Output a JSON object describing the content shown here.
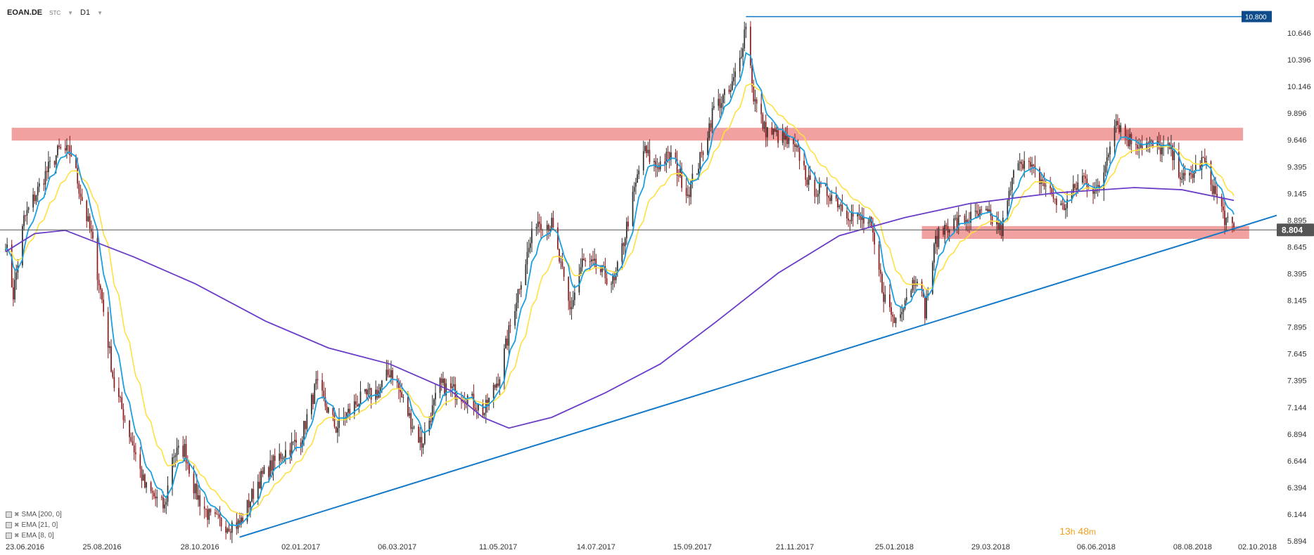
{
  "header": {
    "symbol": "EOAN.DE",
    "type": "STC",
    "interval": "D1"
  },
  "indicators": [
    {
      "label": "SMA [200,  0]"
    },
    {
      "label": "EMA [21,  0]"
    },
    {
      "label": "EMA [8,  0]"
    }
  ],
  "timer": {
    "h": "13",
    "h_unit": "h",
    "m": "48",
    "m_unit": "m"
  },
  "colors": {
    "up": "#2d2d2d",
    "down": "#8b1a1a",
    "sma200": "#6a3dc8",
    "ema21": "#ffe040",
    "ema8": "#1aa0e0",
    "trendline": "#1479c8",
    "zone": "#f09090",
    "price_line": "#555555",
    "top_label": "#0d4b8a"
  },
  "chart_data": {
    "type": "candlestick",
    "x_ticks": [
      "23.06.2016",
      "25.08.2016",
      "28.10.2016",
      "02.01.2017",
      "06.03.2017",
      "11.05.2017",
      "14.07.2017",
      "15.09.2017",
      "21.11.2017",
      "25.01.2018",
      "29.03.2018",
      "06.06.2018",
      "08.08.2018",
      "02.10.2018"
    ],
    "y_ticks": [
      "10.646",
      "10.396",
      "10.146",
      "9.896",
      "9.646",
      "9.395",
      "9.145",
      "8.895",
      "8.645",
      "8.395",
      "8.145",
      "7.895",
      "7.645",
      "7.395",
      "7.144",
      "6.894",
      "6.644",
      "6.394",
      "6.144",
      "5.894"
    ],
    "ylim": [
      5.894,
      10.85
    ],
    "current_price": "8.804",
    "top_level": "10.800",
    "resistance_zone": {
      "low": 9.64,
      "high": 9.76
    },
    "support_zone": {
      "low": 8.72,
      "high": 8.84
    },
    "trendline": [
      {
        "date": "2016-11-23",
        "value": 5.93
      },
      {
        "date": "2018-10-02",
        "value": 8.94
      }
    ],
    "close_anchors": [
      {
        "date": "2016-06-23",
        "value": 8.7
      },
      {
        "date": "2016-06-28",
        "value": 8.2
      },
      {
        "date": "2016-07-05",
        "value": 8.9
      },
      {
        "date": "2016-07-18",
        "value": 9.3
      },
      {
        "date": "2016-07-28",
        "value": 9.55
      },
      {
        "date": "2016-08-05",
        "value": 9.52
      },
      {
        "date": "2016-08-10",
        "value": 9.2
      },
      {
        "date": "2016-08-18",
        "value": 8.75
      },
      {
        "date": "2016-08-25",
        "value": 8.15
      },
      {
        "date": "2016-09-02",
        "value": 7.35
      },
      {
        "date": "2016-09-12",
        "value": 6.9
      },
      {
        "date": "2016-09-22",
        "value": 6.4
      },
      {
        "date": "2016-10-05",
        "value": 6.2
      },
      {
        "date": "2016-10-10",
        "value": 6.7
      },
      {
        "date": "2016-10-18",
        "value": 6.75
      },
      {
        "date": "2016-10-25",
        "value": 6.35
      },
      {
        "date": "2016-11-04",
        "value": 6.1
      },
      {
        "date": "2016-11-14",
        "value": 6.05
      },
      {
        "date": "2016-11-23",
        "value": 6.05
      },
      {
        "date": "2016-12-05",
        "value": 6.45
      },
      {
        "date": "2016-12-20",
        "value": 6.7
      },
      {
        "date": "2017-01-02",
        "value": 6.85
      },
      {
        "date": "2017-01-12",
        "value": 7.35
      },
      {
        "date": "2017-01-25",
        "value": 6.95
      },
      {
        "date": "2017-02-08",
        "value": 7.2
      },
      {
        "date": "2017-02-22",
        "value": 7.3
      },
      {
        "date": "2017-03-02",
        "value": 7.5
      },
      {
        "date": "2017-03-14",
        "value": 7.05
      },
      {
        "date": "2017-03-22",
        "value": 6.8
      },
      {
        "date": "2017-04-03",
        "value": 7.35
      },
      {
        "date": "2017-04-20",
        "value": 7.25
      },
      {
        "date": "2017-05-02",
        "value": 7.1
      },
      {
        "date": "2017-05-12",
        "value": 7.45
      },
      {
        "date": "2017-05-25",
        "value": 8.3
      },
      {
        "date": "2017-06-05",
        "value": 8.9
      },
      {
        "date": "2017-06-15",
        "value": 8.85
      },
      {
        "date": "2017-06-27",
        "value": 8.05
      },
      {
        "date": "2017-07-05",
        "value": 8.5
      },
      {
        "date": "2017-07-14",
        "value": 8.45
      },
      {
        "date": "2017-07-26",
        "value": 8.3
      },
      {
        "date": "2017-08-04",
        "value": 8.9
      },
      {
        "date": "2017-08-14",
        "value": 9.55
      },
      {
        "date": "2017-08-22",
        "value": 9.4
      },
      {
        "date": "2017-09-01",
        "value": 9.5
      },
      {
        "date": "2017-09-12",
        "value": 9.15
      },
      {
        "date": "2017-09-21",
        "value": 9.5
      },
      {
        "date": "2017-09-29",
        "value": 9.95
      },
      {
        "date": "2017-10-10",
        "value": 10.1
      },
      {
        "date": "2017-10-16",
        "value": 10.4
      },
      {
        "date": "2017-10-20",
        "value": 10.75
      },
      {
        "date": "2017-10-25",
        "value": 10.05
      },
      {
        "date": "2017-11-01",
        "value": 9.75
      },
      {
        "date": "2017-11-14",
        "value": 9.65
      },
      {
        "date": "2017-11-24",
        "value": 9.5
      },
      {
        "date": "2017-12-01",
        "value": 9.2
      },
      {
        "date": "2017-12-14",
        "value": 9.15
      },
      {
        "date": "2017-12-27",
        "value": 8.95
      },
      {
        "date": "2018-01-09",
        "value": 8.85
      },
      {
        "date": "2018-01-18",
        "value": 8.2
      },
      {
        "date": "2018-01-25",
        "value": 7.95
      },
      {
        "date": "2018-02-02",
        "value": 8.2
      },
      {
        "date": "2018-02-09",
        "value": 8.4
      },
      {
        "date": "2018-02-14",
        "value": 8.05
      },
      {
        "date": "2018-02-21",
        "value": 8.7
      },
      {
        "date": "2018-02-28",
        "value": 8.85
      },
      {
        "date": "2018-03-12",
        "value": 8.9
      },
      {
        "date": "2018-03-26",
        "value": 8.95
      },
      {
        "date": "2018-04-05",
        "value": 8.8
      },
      {
        "date": "2018-04-16",
        "value": 9.5
      },
      {
        "date": "2018-05-02",
        "value": 9.25
      },
      {
        "date": "2018-05-15",
        "value": 9.0
      },
      {
        "date": "2018-05-28",
        "value": 9.3
      },
      {
        "date": "2018-06-08",
        "value": 9.15
      },
      {
        "date": "2018-06-18",
        "value": 9.85
      },
      {
        "date": "2018-06-27",
        "value": 9.65
      },
      {
        "date": "2018-07-10",
        "value": 9.6
      },
      {
        "date": "2018-07-24",
        "value": 9.55
      },
      {
        "date": "2018-08-03",
        "value": 9.25
      },
      {
        "date": "2018-08-15",
        "value": 9.45
      },
      {
        "date": "2018-08-24",
        "value": 9.1
      },
      {
        "date": "2018-08-31",
        "value": 8.85
      },
      {
        "date": "2018-09-04",
        "value": 8.8
      }
    ],
    "sma200": [
      {
        "date": "2016-06-23",
        "value": 8.6
      },
      {
        "date": "2016-07-12",
        "value": 8.77
      },
      {
        "date": "2016-08-01",
        "value": 8.8
      },
      {
        "date": "2016-09-15",
        "value": 8.55
      },
      {
        "date": "2016-10-25",
        "value": 8.3
      },
      {
        "date": "2016-12-10",
        "value": 7.95
      },
      {
        "date": "2017-01-20",
        "value": 7.7
      },
      {
        "date": "2017-03-01",
        "value": 7.55
      },
      {
        "date": "2017-04-10",
        "value": 7.3
      },
      {
        "date": "2017-05-01",
        "value": 7.05
      },
      {
        "date": "2017-05-18",
        "value": 6.95
      },
      {
        "date": "2017-06-15",
        "value": 7.05
      },
      {
        "date": "2017-07-20",
        "value": 7.28
      },
      {
        "date": "2017-08-25",
        "value": 7.55
      },
      {
        "date": "2017-10-01",
        "value": 7.95
      },
      {
        "date": "2017-11-10",
        "value": 8.4
      },
      {
        "date": "2017-12-20",
        "value": 8.75
      },
      {
        "date": "2018-02-01",
        "value": 8.92
      },
      {
        "date": "2018-03-15",
        "value": 9.05
      },
      {
        "date": "2018-05-10",
        "value": 9.15
      },
      {
        "date": "2018-07-01",
        "value": 9.2
      },
      {
        "date": "2018-08-01",
        "value": 9.18
      },
      {
        "date": "2018-09-04",
        "value": 9.08
      }
    ]
  }
}
